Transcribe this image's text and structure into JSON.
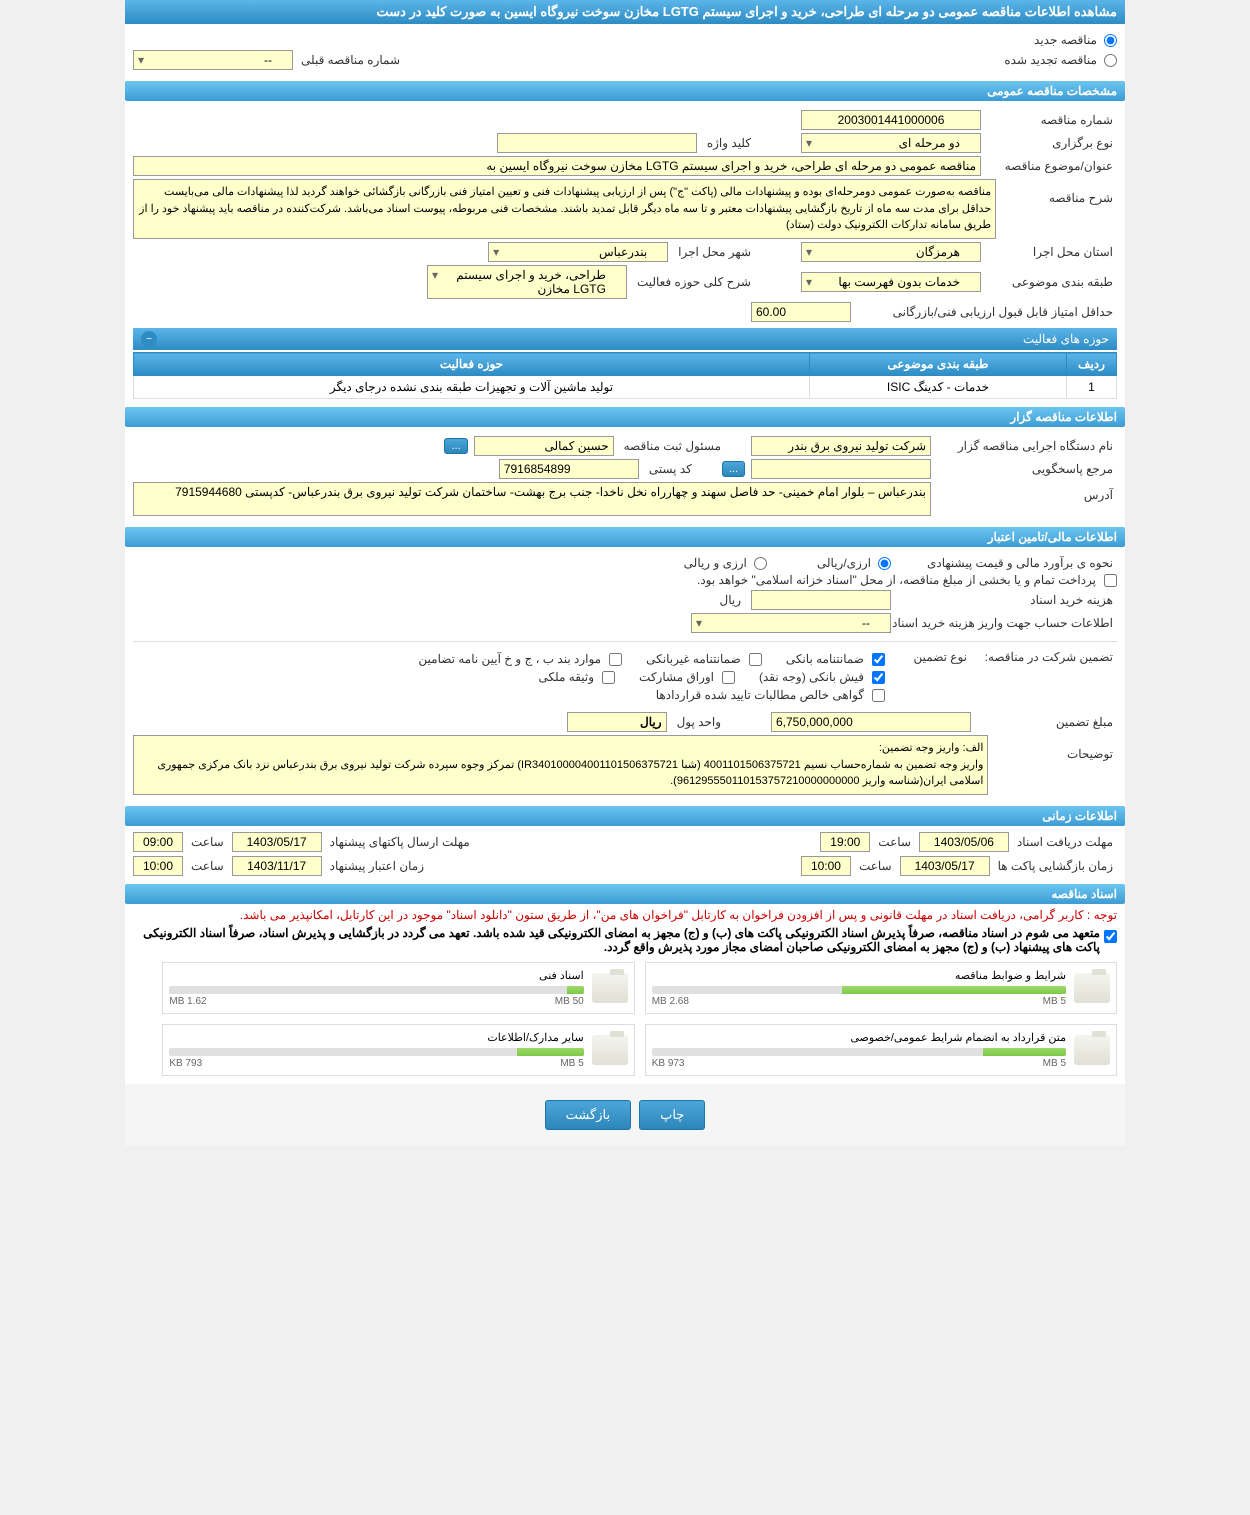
{
  "page_title": "مشاهده اطلاعات مناقصه عمومی دو مرحله ای طراحی، خرید و اجرای سیستم LGTG مخازن سوخت نیروگاه ایسین به صورت کلید در دست",
  "tender_type": {
    "new_label": "مناقصه جدید",
    "renewed_label": "مناقصه تجدید شده",
    "prev_number_label": "شماره مناقصه قبلی",
    "prev_number_value": "--"
  },
  "sections": {
    "general": "مشخصات مناقصه عمومی",
    "organizer": "اطلاعات مناقصه گزار",
    "financial": "اطلاعات مالی/تامین اعتبار",
    "timing": "اطلاعات زمانی",
    "documents": "اسناد مناقصه"
  },
  "general": {
    "tender_number_label": "شماره مناقصه",
    "tender_number": "2003001441000006",
    "holding_type_label": "نوع برگزاری",
    "holding_type": "دو مرحله ای",
    "keyword_label": "کلید واژه",
    "keyword": "",
    "subject_label": "عنوان/موضوع مناقصه",
    "subject": "مناقصه عمومی دو مرحله ای طراحی، خرید و اجرای سیستم  LGTG مخازن سوخت نیروگاه ایسین به",
    "description_label": "شرح مناقصه",
    "description": "مناقصه به‌صورت عمومی دومرحله‌ای بوده و پیشنهادات مالی (پاکت \"ج\") پس از ارزیابی پیشنهادات فنی و تعیین امتیاز فنی بازرگانی بازگشائی خواهند گردید لذا پیشنهادات مالی می‌بایست حداقل برای مدت سه ماه از تاریخ بازگشایی پیشنهادات معتبر و تا سه ماه دیگر قابل تمدید باشند. مشخصات فنی مربوطه، پیوست اسناد می‌باشد. شرکت‌کننده در مناقصه باید پیشنهاد خود را از طریق سامانه تدارکات الکترونیک دولت (ستاد)",
    "province_label": "استان محل اجرا",
    "province": "هرمزگان",
    "city_label": "شهر محل اجرا",
    "city": "بندرعباس",
    "classification_label": "طبقه بندی موضوعی",
    "classification": "خدمات بدون فهرست بها",
    "activity_desc_label": "شرح کلی حوزه فعالیت",
    "activity_desc": "طراحی، خرید و اجرای سیستم  LGTG مخازن",
    "min_score_label": "حداقل امتیاز قابل قبول ارزیابی فنی/بازرگانی",
    "min_score": "60.00"
  },
  "activities": {
    "header": "حوزه های فعالیت",
    "col_row": "ردیف",
    "col_classification": "طبقه بندی موضوعی",
    "col_activity": "حوزه فعالیت",
    "rows": [
      {
        "num": "1",
        "classification": "خدمات - کدینگ ISIC",
        "activity": "تولید ماشین آلات و تجهیزات طبقه بندی نشده درجای دیگر"
      }
    ]
  },
  "organizer": {
    "agency_label": "نام دستگاه اجرایی مناقصه گزار",
    "agency": "شرکت تولید نیروی برق بندر",
    "registrar_label": "مسئول ثبت مناقصه",
    "registrar": "حسین کمالی",
    "details_btn": "...",
    "responder_label": "مرجع پاسخگویی",
    "responder": "",
    "responder_btn": "...",
    "postal_code_label": "کد پستی",
    "postal_code": "7916854899",
    "address_label": "آدرس",
    "address": "بندرعباس – بلوار امام خمینی- حد فاصل سهند و چهارراه نخل ناخدا- جنب برج بهشت- ساختمان شرکت تولید نیروی برق بندرعباس- کدپستی 7915944680"
  },
  "financial": {
    "estimate_method_label": "نحوه ی برآورد مالی و قیمت پیشنهادی",
    "opt_foreign_rial": "ارزی/ریالی",
    "opt_foreign_and_rial": "ارزی و ریالی",
    "treasury_label": "پرداخت تمام و یا بخشی از مبلغ مناقصه، از محل \"اسناد خزانه اسلامی\" خواهد بود.",
    "doc_cost_label": "هزینه خرید اسناد",
    "doc_cost": "",
    "doc_cost_unit": "ریال",
    "account_info_label": "اطلاعات حساب جهت واریز هزینه خرید اسناد",
    "account_info": "--",
    "guarantee_header_label": "تضمین شرکت در مناقصه:",
    "guarantee_type_label": "نوع تضمین",
    "guarantee_types": {
      "bank_guarantee": "ضمانتنامه بانکی",
      "nonbank_guarantee": "ضمانتنامه غیربانکی",
      "articles": "موارد بند ب ، ج و خ آیین نامه تضامین",
      "bank_receipt": "فیش بانکی (وجه نقد)",
      "participation_bonds": "اوراق مشارکت",
      "property_deposit": "وثیقه ملکی",
      "contract_claims": "گواهی خالص مطالبات تایید شده قراردادها"
    },
    "guarantee_amount_label": "مبلغ تضمین",
    "guarantee_amount": "6,750,000,000",
    "currency_unit_label": "واحد پول",
    "currency_unit": "ریال",
    "notes_label": "توضیحات",
    "notes": "الف: واریز وجه تضمین:\nواریز وجه تضمین به شماره‌حساب نسیم 4001101506375721 (شبا IR340100004001101506375721) تمرکز وجوه سپرده شرکت تولید نیروی برق بندرعباس نزد بانک مرکزی جمهوری اسلامی ایران(شناسه واریز 961295550110153757210000000000)."
  },
  "timing": {
    "doc_receipt_label": "مهلت دریافت اسناد",
    "doc_receipt_date": "1403/05/06",
    "doc_receipt_time_label": "ساعت",
    "doc_receipt_time": "19:00",
    "envelope_send_label": "مهلت ارسال پاکتهای پیشنهاد",
    "envelope_send_date": "1403/05/17",
    "envelope_send_time_label": "ساعت",
    "envelope_send_time": "09:00",
    "envelope_open_label": "زمان بازگشایی پاکت ها",
    "envelope_open_date": "1403/05/17",
    "envelope_open_time_label": "ساعت",
    "envelope_open_time": "10:00",
    "validity_label": "زمان اعتبار پیشنهاد",
    "validity_date": "1403/11/17",
    "validity_time_label": "ساعت",
    "validity_time": "10:00"
  },
  "documents": {
    "notice_red": "توجه : کاربر گرامی، دریافت اسناد در مهلت قانونی و پس از افزودن فراخوان به کارتابل \"فراخوان های من\"، از طریق ستون \"دانلود اسناد\" موجود در این کارتابل، امکانپذیر می باشد.",
    "notice_black": "متعهد می شوم در اسناد مناقصه، صرفاً پذیرش اسناد الکترونیکی پاکت های (ب) و (ج) مجهز به امضای الکترونیکی قید شده باشد. تعهد می گردد در بازگشایی و پذیرش اسناد، صرفاً اسناد الکترونیکی پاکت های پیشنهاد (ب) و (ج) مجهز به امضای الکترونیکی صاحبان امضای مجاز مورد پذیرش واقع گردد.",
    "files": [
      {
        "title": "شرایط و ضوابط مناقصه",
        "size": "2.68 MB",
        "max": "5 MB",
        "fill_pct": 54
      },
      {
        "title": "اسناد فنی",
        "size": "1.62 MB",
        "max": "50 MB",
        "fill_pct": 4
      },
      {
        "title": "متن قرارداد به انضمام شرایط عمومی/خصوصی",
        "size": "973 KB",
        "max": "5 MB",
        "fill_pct": 20
      },
      {
        "title": "سایر مدارک/اطلاعات",
        "size": "793 KB",
        "max": "5 MB",
        "fill_pct": 16
      }
    ]
  },
  "footer": {
    "print": "چاپ",
    "back": "بازگشت"
  },
  "colors": {
    "header_grad_start": "#6bc5f0",
    "header_grad_end": "#2d8cc4",
    "field_bg": "#ffffcc",
    "btn_bg": "#3d9cd4",
    "progress_fill": "#8ed958"
  }
}
